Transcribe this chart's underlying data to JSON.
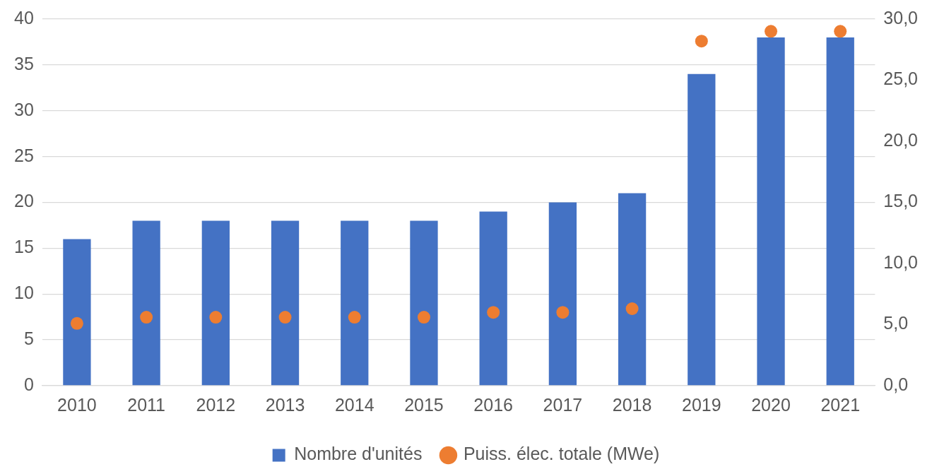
{
  "chart_data": {
    "type": "bar",
    "categories": [
      "2010",
      "2011",
      "2012",
      "2013",
      "2014",
      "2015",
      "2016",
      "2017",
      "2018",
      "2019",
      "2020",
      "2021"
    ],
    "series": [
      {
        "name": "Nombre d'unités",
        "color": "#4472c4",
        "values": [
          16,
          18,
          18,
          18,
          18,
          18,
          19,
          20,
          21,
          34,
          38,
          38
        ]
      },
      {
        "name": "Puiss. élec. totale (MWe)",
        "type": "scatter",
        "axis": "y2",
        "marker": "circle",
        "color": "#ed7d31",
        "values": [
          5.1,
          5.6,
          5.6,
          5.6,
          5.6,
          5.6,
          6.0,
          6.0,
          6.3,
          28.2,
          29.0,
          29.0
        ]
      }
    ],
    "ylim": [
      0,
      40
    ],
    "yticks": [
      0,
      5,
      10,
      15,
      20,
      25,
      30,
      35,
      40
    ],
    "y2lim": [
      0,
      30
    ],
    "y2ticks": [
      {
        "value": 0,
        "label": "0,0"
      },
      {
        "value": 5,
        "label": "5,0"
      },
      {
        "value": 10,
        "label": "10,0"
      },
      {
        "value": 15,
        "label": "15,0"
      },
      {
        "value": 20,
        "label": "20,0"
      },
      {
        "value": 25,
        "label": "25,0"
      },
      {
        "value": 30,
        "label": "30,0"
      }
    ],
    "grid": "y",
    "legend": "bottom"
  }
}
